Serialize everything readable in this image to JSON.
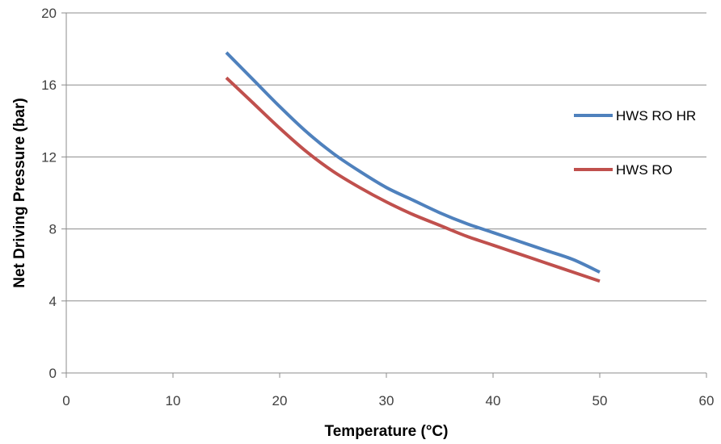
{
  "chart_data": {
    "type": "line",
    "title": "",
    "xlabel": "Temperature (°C)",
    "ylabel": "Net Driving Pressure (bar)",
    "xlim": [
      0,
      60
    ],
    "ylim": [
      0,
      20
    ],
    "x_ticks": [
      "0",
      "10",
      "20",
      "30",
      "40",
      "50",
      "60"
    ],
    "y_ticks": [
      "0",
      "4",
      "8",
      "12",
      "16",
      "20"
    ],
    "grid": "horizontal",
    "legend_position": "right",
    "series": [
      {
        "name": "HWS RO HR",
        "color": "#4F81BD",
        "x": [
          15,
          17.5,
          20,
          22.5,
          25,
          27.5,
          30,
          32.5,
          35,
          37.5,
          40,
          42.5,
          45,
          47.5,
          50
        ],
        "y": [
          17.8,
          16.3,
          14.8,
          13.4,
          12.2,
          11.2,
          10.3,
          9.6,
          8.9,
          8.3,
          7.8,
          7.3,
          6.8,
          6.3,
          5.6
        ]
      },
      {
        "name": "HWS RO",
        "color": "#C0504D",
        "x": [
          15,
          17.5,
          20,
          22.5,
          25,
          27.5,
          30,
          32.5,
          35,
          37.5,
          40,
          42.5,
          45,
          47.5,
          50
        ],
        "y": [
          16.4,
          15.0,
          13.6,
          12.3,
          11.2,
          10.3,
          9.5,
          8.8,
          8.2,
          7.6,
          7.1,
          6.6,
          6.1,
          5.6,
          5.1
        ]
      }
    ]
  }
}
